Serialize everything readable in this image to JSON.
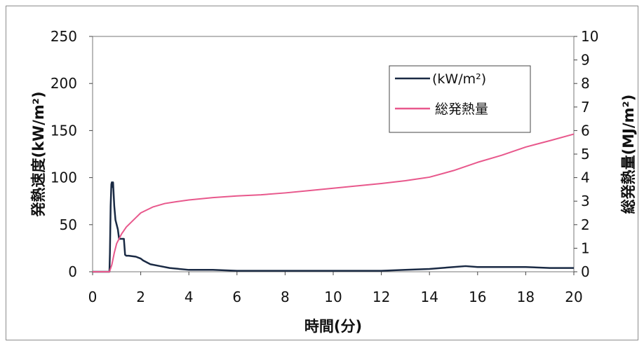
{
  "chart_data": {
    "type": "line",
    "xlabel": "時間(分)",
    "ylabel_left": "発熱速度(kW/m²)",
    "ylabel_right": "総発熱量(MJ/m²)",
    "xlim": [
      0,
      20
    ],
    "ylim_left": [
      0,
      250
    ],
    "ylim_right": [
      0,
      10
    ],
    "x_ticks": [
      "0",
      "2",
      "4",
      "6",
      "8",
      "10",
      "12",
      "14",
      "16",
      "18",
      "20"
    ],
    "y_left_ticks": [
      "0",
      "50",
      "100",
      "150",
      "200",
      "250"
    ],
    "y_right_ticks": [
      "0",
      "1",
      "2",
      "3",
      "4",
      "5",
      "6",
      "7",
      "8",
      "9",
      "10"
    ],
    "grid": false,
    "legend_position": "top-right",
    "series": [
      {
        "name": "(kW/m²)",
        "axis": "left",
        "color": "#1a2a44",
        "x": [
          0,
          0.7,
          0.72,
          0.75,
          0.78,
          0.8,
          0.82,
          0.85,
          0.9,
          0.95,
          1.0,
          1.05,
          1.1,
          1.15,
          1.2,
          1.3,
          1.35,
          1.4,
          1.5,
          1.8,
          2.0,
          2.1,
          2.4,
          2.8,
          3.2,
          3.6,
          4.0,
          5.0,
          6.0,
          7.0,
          8.0,
          9.0,
          10.0,
          11.0,
          12.0,
          13.0,
          14.0,
          14.5,
          15.0,
          15.5,
          16.0,
          17.0,
          18.0,
          19.0,
          20.0
        ],
        "values": [
          0,
          0,
          20,
          70,
          93,
          95,
          90,
          95,
          70,
          55,
          50,
          45,
          35,
          35,
          35,
          35,
          18,
          17,
          17,
          16,
          14,
          12,
          8,
          6,
          4,
          3,
          2,
          2,
          1,
          1,
          1,
          1,
          1,
          1,
          1,
          2,
          3,
          4,
          5,
          6,
          5,
          5,
          5,
          4,
          4
        ]
      },
      {
        "name": "総発熱量",
        "axis": "right",
        "color": "#e8588c",
        "x": [
          0,
          0.7,
          0.8,
          0.9,
          1.0,
          1.2,
          1.4,
          1.6,
          1.8,
          2.0,
          2.2,
          2.5,
          3.0,
          3.5,
          4.0,
          5.0,
          6.0,
          7.0,
          8.0,
          9.0,
          10.0,
          11.0,
          12.0,
          13.0,
          14.0,
          15.0,
          16.0,
          17.0,
          18.0,
          19.0,
          20.0
        ],
        "values": [
          0,
          0,
          0.3,
          0.8,
          1.2,
          1.6,
          1.9,
          2.1,
          2.3,
          2.5,
          2.6,
          2.75,
          2.9,
          2.98,
          3.05,
          3.15,
          3.22,
          3.27,
          3.35,
          3.45,
          3.55,
          3.65,
          3.75,
          3.87,
          4.02,
          4.3,
          4.65,
          4.95,
          5.3,
          5.57,
          5.85
        ]
      }
    ]
  }
}
